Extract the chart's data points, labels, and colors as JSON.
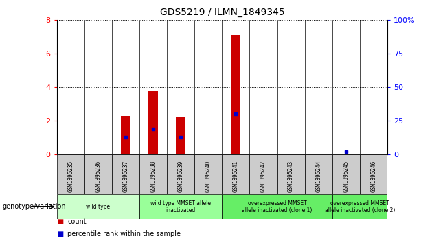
{
  "title": "GDS5219 / ILMN_1849345",
  "samples": [
    "GSM1395235",
    "GSM1395236",
    "GSM1395237",
    "GSM1395238",
    "GSM1395239",
    "GSM1395240",
    "GSM1395241",
    "GSM1395242",
    "GSM1395243",
    "GSM1395244",
    "GSM1395245",
    "GSM1395246"
  ],
  "counts": [
    0,
    0,
    2.3,
    3.8,
    2.2,
    0,
    7.1,
    0,
    0,
    0,
    0,
    0
  ],
  "percentile_ranks_pct": [
    0,
    0,
    13,
    19,
    13,
    0,
    30,
    0,
    0,
    0,
    2,
    0
  ],
  "ylim_left": [
    0,
    8
  ],
  "ylim_right": [
    0,
    100
  ],
  "yticks_left": [
    0,
    2,
    4,
    6,
    8
  ],
  "yticks_right": [
    0,
    25,
    50,
    75,
    100
  ],
  "ytick_labels_right": [
    "0",
    "25",
    "50",
    "75",
    "100%"
  ],
  "groups": [
    {
      "label": "wild type",
      "start": 0,
      "end": 2,
      "color": "#ccffcc"
    },
    {
      "label": "wild type MMSET allele\ninactivated",
      "start": 3,
      "end": 5,
      "color": "#99ff99"
    },
    {
      "label": "overexpressed MMSET\nallele inactivated (clone 1)",
      "start": 6,
      "end": 9,
      "color": "#66ee66"
    },
    {
      "label": "overexpressed MMSET\nallele inactivated (clone 2)",
      "start": 10,
      "end": 11,
      "color": "#66ee66"
    }
  ],
  "bar_color": "#cc0000",
  "dot_color": "#0000cc",
  "genotype_label": "genotype/variation",
  "legend_count_label": "count",
  "legend_pct_label": "percentile rank within the sample",
  "sample_box_color": "#cccccc"
}
